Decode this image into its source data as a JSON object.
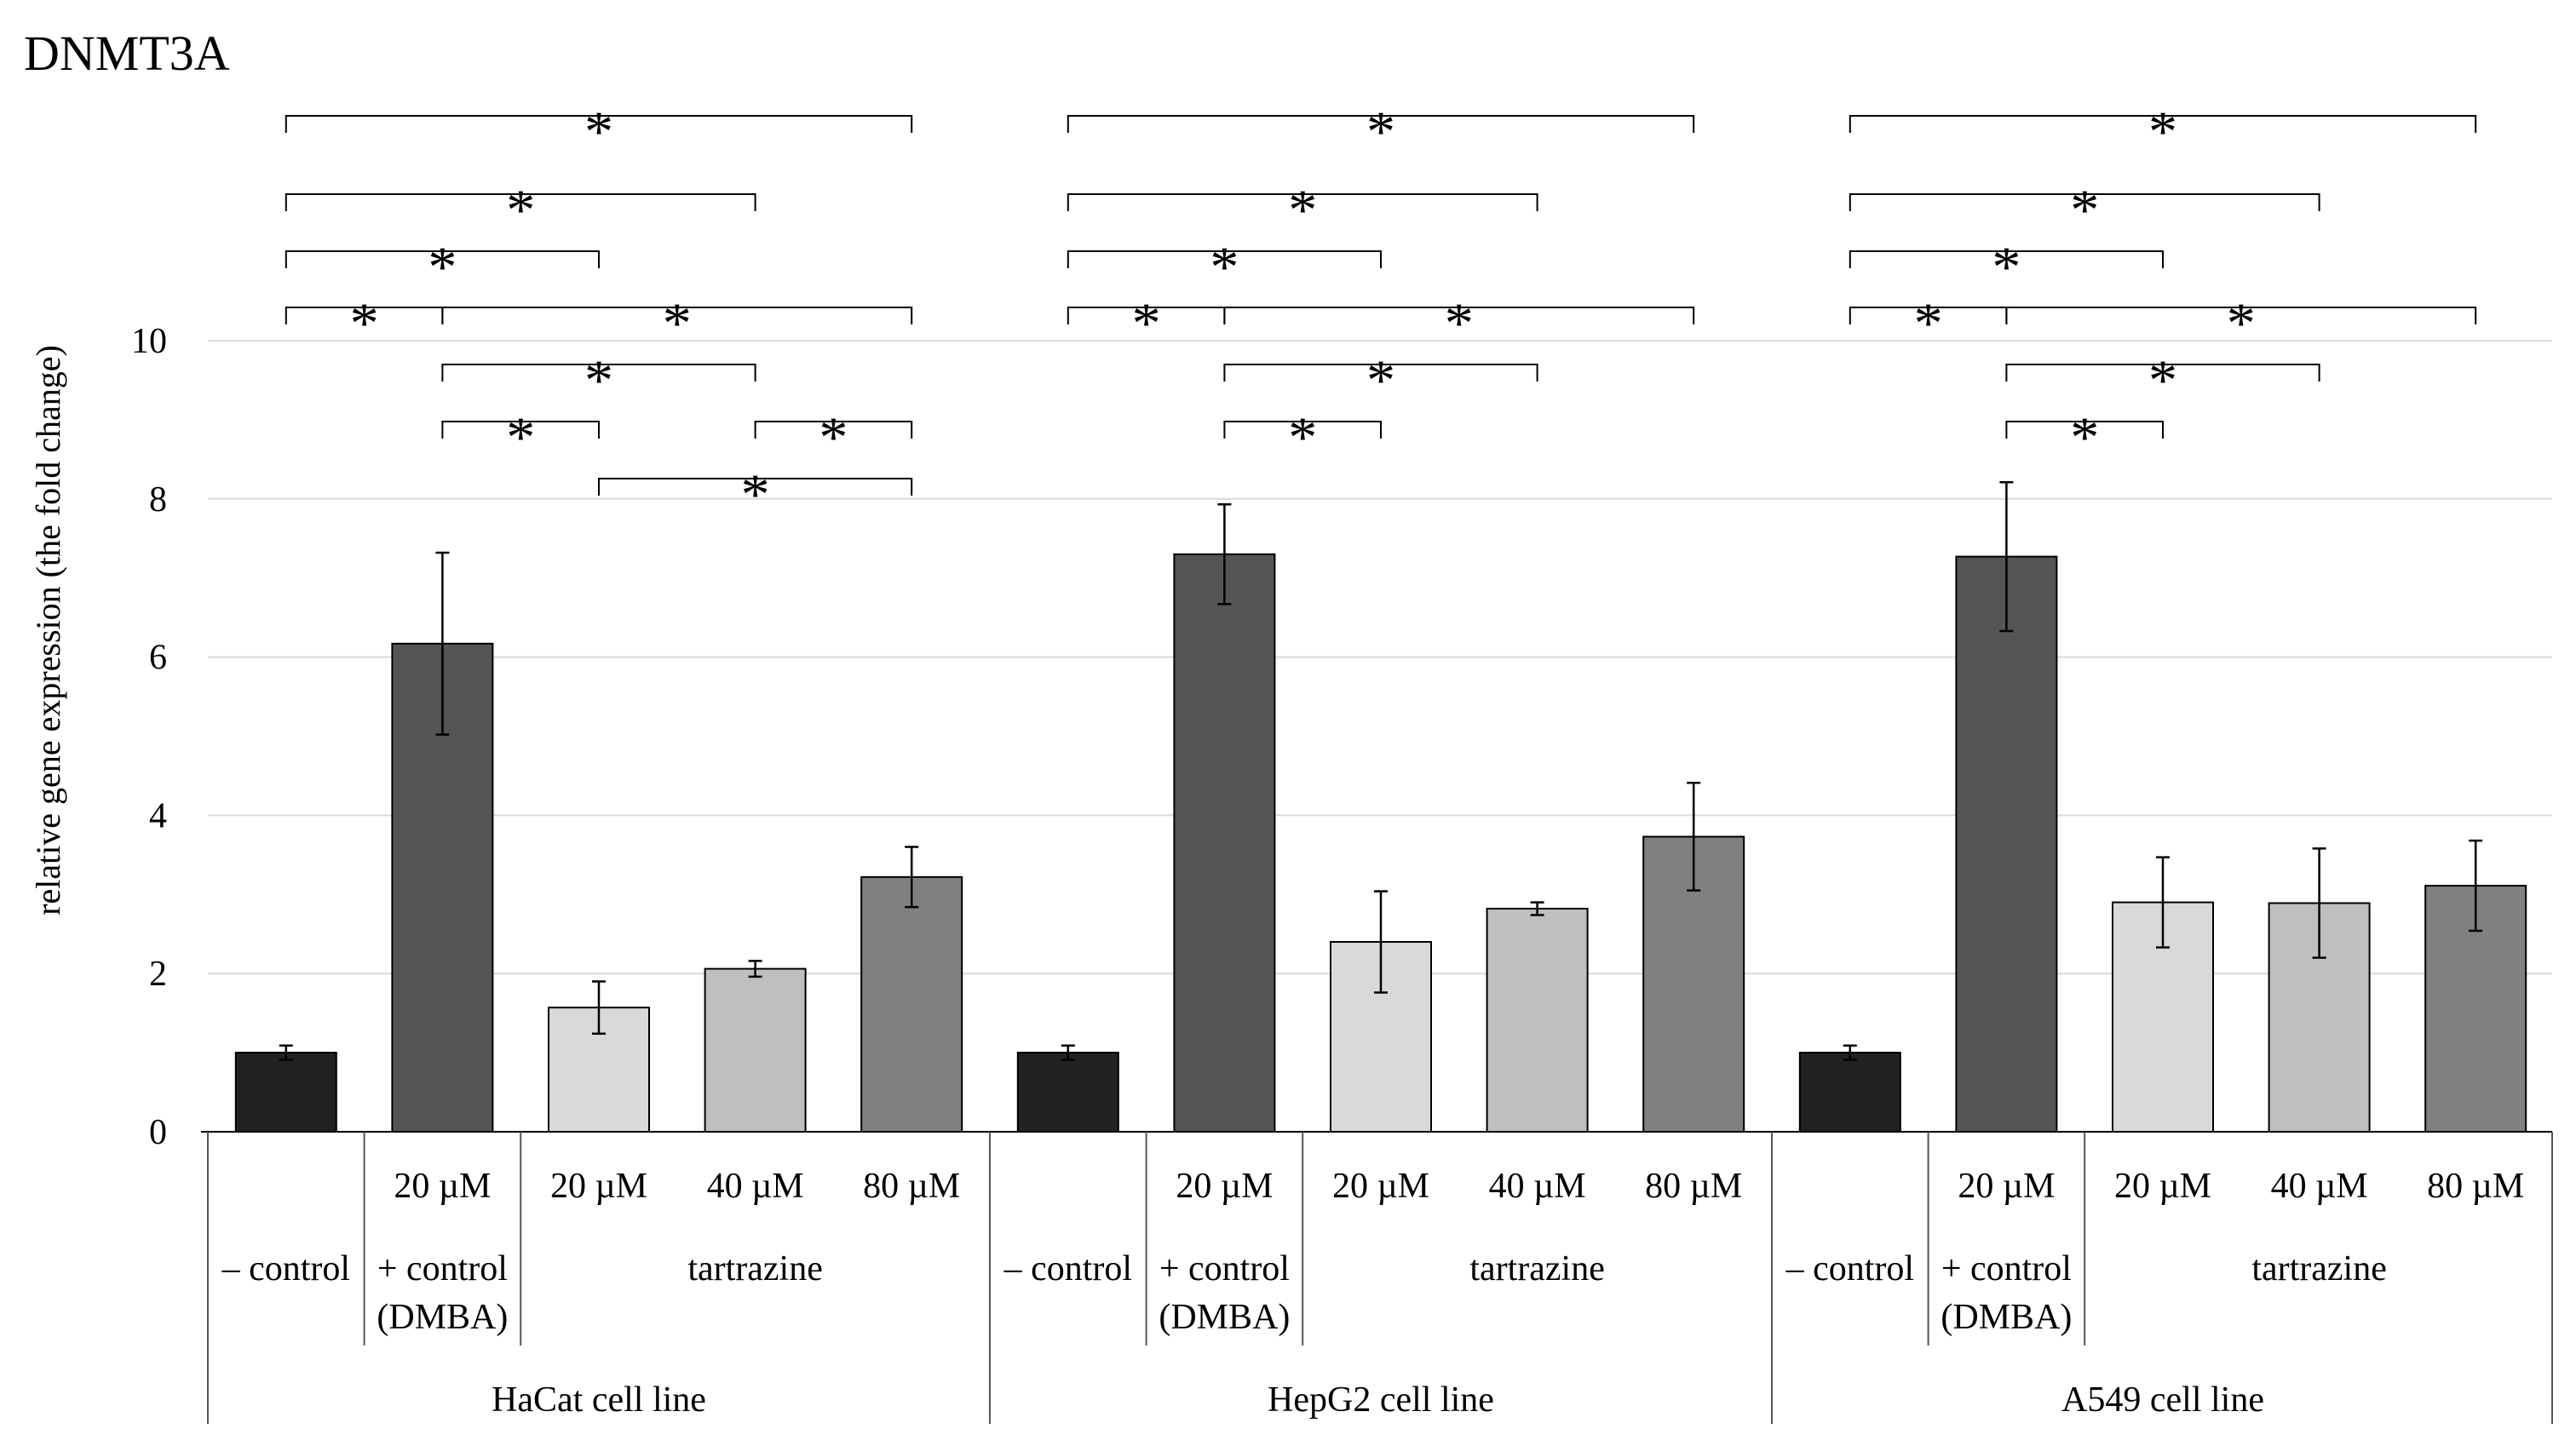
{
  "chart_data": {
    "type": "bar",
    "title": "DNMT3A",
    "ylabel": "relative gene expression (the fold change)",
    "xlabel": "",
    "ylim": [
      0,
      10
    ],
    "yticks": [
      "0",
      "2",
      "4",
      "6",
      "8",
      "10"
    ],
    "grid": true,
    "colors": [
      "#222222",
      "#555555",
      "#d9d9d9",
      "#bfbfbf",
      "#808080"
    ],
    "category_labels": {
      "concentrations": [
        "",
        "20 µM",
        "20 µM",
        "40 µM",
        "80 µM"
      ],
      "neg_control": "– control",
      "pos_control": [
        "+ control",
        "(DMBA)"
      ],
      "tartrazine": "tartrazine"
    },
    "groups": [
      {
        "name": "HaCat cell line",
        "values": [
          1.0,
          6.17,
          1.57,
          2.06,
          3.22
        ],
        "errors": [
          0.09,
          1.15,
          0.33,
          0.1,
          0.38
        ],
        "significance": [
          [
            0,
            4
          ],
          [
            0,
            3
          ],
          [
            0,
            2
          ],
          [
            0,
            1
          ],
          [
            1,
            4
          ],
          [
            1,
            3
          ],
          [
            1,
            2
          ],
          [
            3,
            4
          ],
          [
            2,
            4
          ]
        ]
      },
      {
        "name": "HepG2 cell line",
        "values": [
          1.0,
          7.3,
          2.4,
          2.82,
          3.73
        ],
        "errors": [
          0.09,
          0.63,
          0.64,
          0.08,
          0.68
        ],
        "significance": [
          [
            0,
            4
          ],
          [
            0,
            3
          ],
          [
            0,
            2
          ],
          [
            0,
            1
          ],
          [
            1,
            4
          ],
          [
            1,
            3
          ],
          [
            1,
            2
          ]
        ]
      },
      {
        "name": "A549 cell line",
        "values": [
          1.0,
          7.27,
          2.9,
          2.89,
          3.11
        ],
        "errors": [
          0.09,
          0.94,
          0.57,
          0.69,
          0.57
        ],
        "significance": [
          [
            0,
            4
          ],
          [
            0,
            3
          ],
          [
            0,
            2
          ],
          [
            0,
            1
          ],
          [
            1,
            4
          ],
          [
            1,
            3
          ],
          [
            1,
            2
          ]
        ]
      }
    ],
    "significance_marker": "*"
  }
}
